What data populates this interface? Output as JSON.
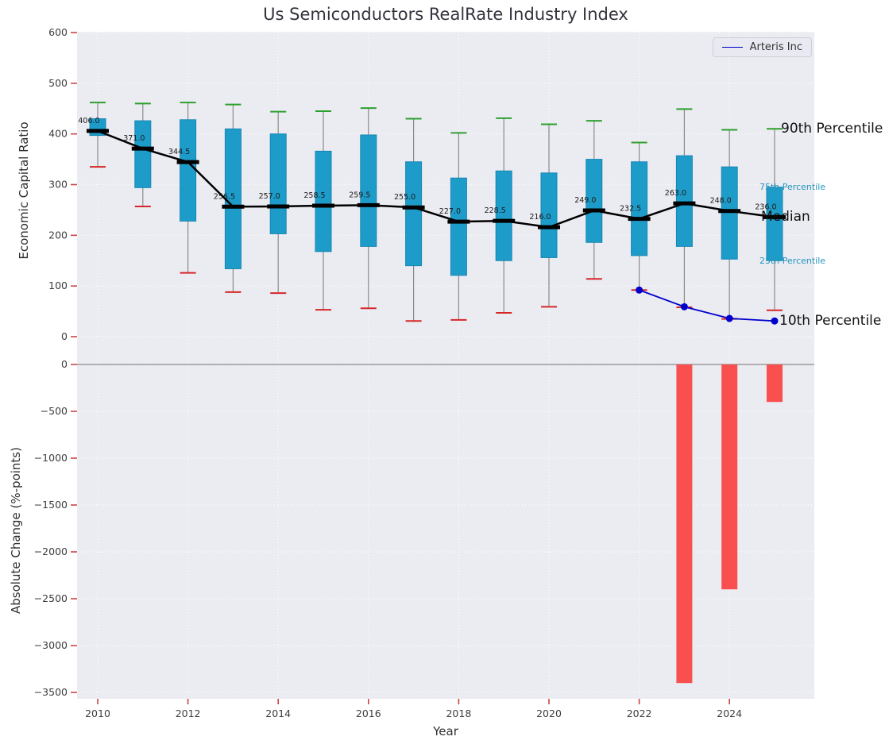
{
  "figure": {
    "title": "Us Semiconductors RealRate Industry Index",
    "xlabel": "Year",
    "top_ylabel": "Economic Capital Ratio",
    "bottom_ylabel": "Absolute Change (%-points)",
    "legend": {
      "label": "Arteris Inc"
    },
    "annotations": {
      "p90": "90th Percentile",
      "p75": "75th Percentile",
      "median": "Median",
      "p25": "25th Percentile",
      "p10": "10th Percentile"
    },
    "colors": {
      "box_fill": "#1e9cc9",
      "box_edge": "#1787b2",
      "whisker": "#8a8a8a",
      "cap_high": "#2ca02c",
      "cap_low": "#d62728",
      "median_line": "#000000",
      "company_line": "#0000cc",
      "bar": "#f94f4f",
      "plot_bg": "#ebebf2",
      "grid": "#ffffff",
      "tick_mark": "#c94444",
      "tick_text": "#3d3d3d",
      "zero_line": "#9a9a9a"
    }
  },
  "chart_data": [
    {
      "type": "boxplot+line",
      "title": "Us Semiconductors RealRate Industry Index",
      "xlabel": "Year",
      "ylabel": "Economic Capital Ratio",
      "ylim": [
        -50,
        600
      ],
      "yticks": [
        0,
        100,
        200,
        300,
        400,
        500,
        600
      ],
      "xticks": [
        2010,
        2012,
        2014,
        2016,
        2018,
        2020,
        2022,
        2024
      ],
      "grid": true,
      "legend_position": "upper right",
      "years": [
        2010,
        2011,
        2012,
        2013,
        2014,
        2015,
        2016,
        2017,
        2018,
        2019,
        2020,
        2021,
        2022,
        2023,
        2024,
        2025
      ],
      "median": [
        406.0,
        371.0,
        344.5,
        256.5,
        257.0,
        258.5,
        259.5,
        255.0,
        227.0,
        228.5,
        216.0,
        249.0,
        232.5,
        263.0,
        248.0,
        236.0
      ],
      "q1": [
        397,
        294,
        228,
        134,
        203,
        168,
        178,
        140,
        121,
        150,
        156,
        186,
        160,
        178,
        153,
        150
      ],
      "q3": [
        430,
        426,
        428,
        410,
        400,
        366,
        398,
        345,
        313,
        327,
        323,
        350,
        345,
        357,
        335,
        295
      ],
      "p10": [
        335,
        257,
        126,
        88,
        86,
        53,
        56,
        31,
        33,
        47,
        59,
        114,
        92,
        58,
        35,
        52
      ],
      "p90": [
        462,
        460,
        462,
        458,
        444,
        445,
        451,
        430,
        402,
        431,
        419,
        426,
        383,
        449,
        408,
        410
      ],
      "series": [
        {
          "name": "Arteris Inc",
          "x": [
            2022,
            2023,
            2024,
            2025
          ],
          "y": [
            92,
            59,
            36,
            31
          ]
        }
      ]
    },
    {
      "type": "bar",
      "ylabel": "Absolute Change (%-points)",
      "ylim": [
        -3500,
        0
      ],
      "yticks": [
        0,
        -500,
        -1000,
        -1500,
        -2000,
        -2500,
        -3000,
        -3500
      ],
      "years": [
        2010,
        2011,
        2012,
        2013,
        2014,
        2015,
        2016,
        2017,
        2018,
        2019,
        2020,
        2021,
        2022,
        2023,
        2024,
        2025
      ],
      "values": [
        null,
        null,
        null,
        null,
        null,
        null,
        null,
        null,
        null,
        null,
        null,
        null,
        null,
        -3400,
        -2400,
        -400
      ]
    }
  ]
}
